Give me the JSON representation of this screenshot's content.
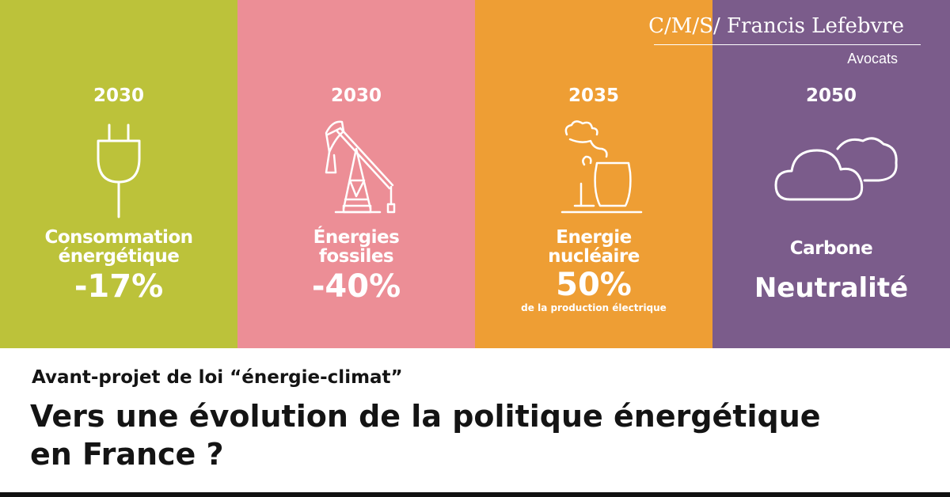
{
  "brand": {
    "logo_main": "C/M/S/ Francis Lefebvre",
    "logo_sub": "Avocats"
  },
  "colors": {
    "green": "#bcc23a",
    "pink": "#ec8e96",
    "orange": "#ee9e34",
    "purple": "#7b5c8b"
  },
  "panels": [
    {
      "year": "2030",
      "icon": "plug-icon",
      "label_line1": "Consommation",
      "label_line2": "énergétique",
      "value": "-17%"
    },
    {
      "year": "2030",
      "icon": "oil-pump-icon",
      "label_line1": "Énergies",
      "label_line2": "fossiles",
      "value": "-40%"
    },
    {
      "year": "2035",
      "icon": "nuclear-plant-icon",
      "label_line1": "Energie",
      "label_line2": "nucléaire",
      "value": "50%",
      "sub": "de la production électrique"
    },
    {
      "year": "2050",
      "icon": "cloud-icon",
      "label_line1": "Carbone",
      "value": "Neutralité"
    }
  ],
  "footer": {
    "kicker": "Avant-projet de loi “énergie-climat”",
    "headline_line1": "Vers une évolution de la politique énergétique",
    "headline_line2": "en France ?"
  }
}
